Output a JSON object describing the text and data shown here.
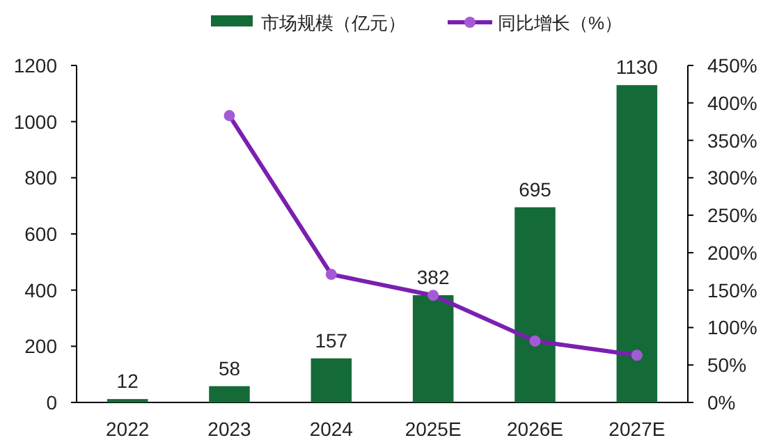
{
  "chart_data": {
    "type": "bar",
    "categories": [
      "2022",
      "2023",
      "2024",
      "2025E",
      "2026E",
      "2027E"
    ],
    "series": [
      {
        "name": "市场规模（亿元）",
        "color": "#146b38",
        "values": [
          12,
          58,
          157,
          382,
          695,
          1130
        ],
        "value_labels": [
          "12",
          "58",
          "157",
          "382",
          "695",
          "1130"
        ]
      },
      {
        "name": "同比增长（%）",
        "type": "line",
        "axis": "y2",
        "color": "#7a1fb0",
        "marker": "circle",
        "values": [
          null,
          383,
          171,
          143,
          82,
          63
        ]
      }
    ],
    "ylim": [
      0,
      1200
    ],
    "yticks": [
      0,
      200,
      400,
      600,
      800,
      1000,
      1200
    ],
    "y2lim": [
      0,
      450
    ],
    "y2ticks": [
      {
        "value": 0,
        "label": "0%"
      },
      {
        "value": 50,
        "label": "50%"
      },
      {
        "value": 100,
        "label": "100%"
      },
      {
        "value": 150,
        "label": "150%"
      },
      {
        "value": 200,
        "label": "200%"
      },
      {
        "value": 250,
        "label": "250%"
      },
      {
        "value": 300,
        "label": "300%"
      },
      {
        "value": 350,
        "label": "350%"
      },
      {
        "value": 400,
        "label": "400%"
      },
      {
        "value": 450,
        "label": "450%"
      }
    ],
    "legend": "top",
    "grid": false
  }
}
